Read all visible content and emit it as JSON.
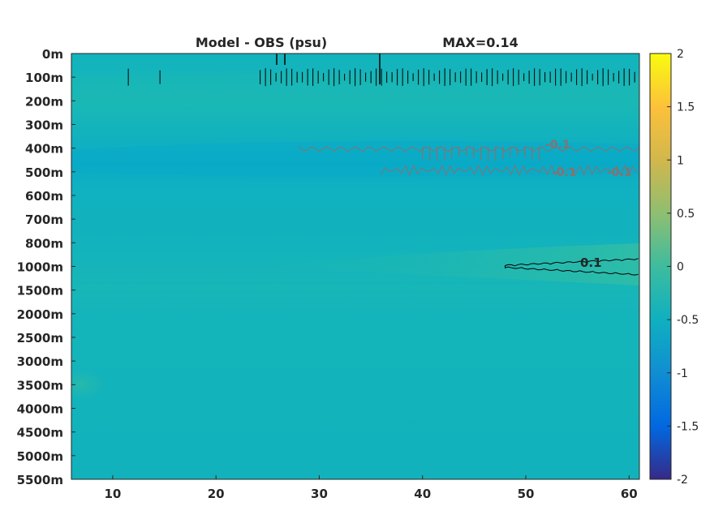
{
  "chart_data": {
    "type": "heatmap",
    "title_left": "Model - OBS (psu)",
    "title_right": "MAX=0.14",
    "x": {
      "range": [
        6,
        61
      ],
      "ticks": [
        10,
        20,
        30,
        40,
        50,
        60
      ],
      "tick_labels": [
        "10",
        "20",
        "30",
        "40",
        "50",
        "60"
      ]
    },
    "y": {
      "labels": [
        "0m",
        "100m",
        "200m",
        "300m",
        "400m",
        "500m",
        "600m",
        "700m",
        "800m",
        "1000m",
        "1500m",
        "2000m",
        "2500m",
        "3000m",
        "3500m",
        "4000m",
        "4500m",
        "5000m",
        "5500m"
      ],
      "reversed": true
    },
    "colorbar": {
      "range": [
        -2,
        2
      ],
      "ticks": [
        2,
        1.5,
        1,
        0.5,
        0,
        -0.5,
        -1,
        -1.5,
        -2
      ],
      "tick_labels": [
        "2",
        "1.5",
        "1",
        "0.5",
        "0",
        "-0.5",
        "-1",
        "-1.5",
        "-2"
      ],
      "colormap": "parula",
      "colors": [
        "#352a87",
        "#0268e1",
        "#108ed2",
        "#0fb0c0",
        "#3ebc9e",
        "#8fbe71",
        "#d2b74d",
        "#fcc13a",
        "#f9fb0e"
      ]
    },
    "contours": [
      {
        "level": 0.1,
        "label": "0.1",
        "color": "#000000",
        "depth_band": "1000m",
        "x_range": [
          48,
          61
        ]
      },
      {
        "level": -0.1,
        "label": "-0.1",
        "color": "#8a7070",
        "depth_band": "400m-500m",
        "x_range": [
          28,
          61
        ]
      },
      {
        "level": 0.1,
        "label": "",
        "color": "#000000",
        "depth_band": "100m",
        "x_range": [
          11,
          61
        ]
      }
    ],
    "field": {
      "base_value": -0.05,
      "features": [
        {
          "depth_band": "100m-300m",
          "value": 0.02
        },
        {
          "depth_band": "400m-500m",
          "value": -0.12
        },
        {
          "depth_band": "1000m",
          "value": 0.1
        },
        {
          "depth_band": "3500m",
          "value": 0.05
        }
      ]
    }
  }
}
